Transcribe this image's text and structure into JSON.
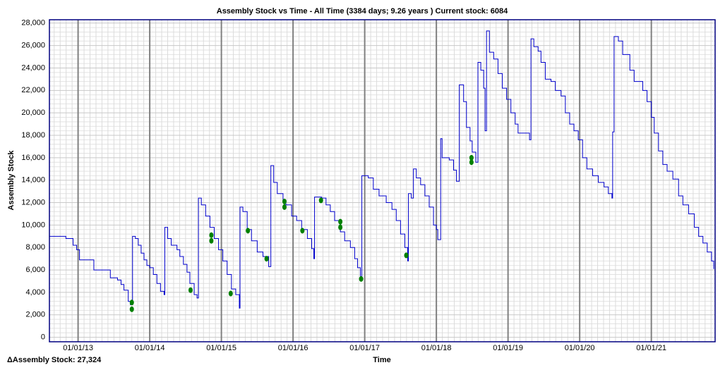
{
  "chart_data": {
    "type": "line",
    "title": "Assembly Stock vs Time - All Time (3384 days; 9.26 years ) Current stock: 6084",
    "x_label": "Time",
    "y_label": "Assembly Stock",
    "annotation": "ΔAssembly Stock: 27,324",
    "grid": true,
    "xlim": [
      2012.6,
      2021.89
    ],
    "ylim": [
      -400,
      28300
    ],
    "xticks": [
      {
        "value": 2013,
        "label": "01/01/13"
      },
      {
        "value": 2014,
        "label": "01/01/14"
      },
      {
        "value": 2015,
        "label": "01/01/15"
      },
      {
        "value": 2016,
        "label": "01/01/16"
      },
      {
        "value": 2017,
        "label": "01/01/17"
      },
      {
        "value": 2018,
        "label": "01/01/18"
      },
      {
        "value": 2019,
        "label": "01/01/19"
      },
      {
        "value": 2020,
        "label": "01/01/20"
      },
      {
        "value": 2021,
        "label": "01/01/21"
      }
    ],
    "yticks": [
      0,
      {
        "value": 2000,
        "label": "2,000"
      },
      {
        "value": 4000,
        "label": "4,000"
      },
      {
        "value": 6000,
        "label": "6,000"
      },
      {
        "value": 8000,
        "label": "8,000"
      },
      {
        "value": 10000,
        "label": "10,000"
      },
      {
        "value": 12000,
        "label": "12,000"
      },
      {
        "value": 14000,
        "label": "14,000"
      },
      {
        "value": 16000,
        "label": "16,000"
      },
      {
        "value": 18000,
        "label": "18,000"
      },
      {
        "value": 20000,
        "label": "20,000"
      },
      {
        "value": 22000,
        "label": "22,000"
      },
      {
        "value": 24000,
        "label": "24,000"
      },
      {
        "value": 26000,
        "label": "26,000"
      },
      {
        "value": 28000,
        "label": "28,000"
      }
    ],
    "series": [
      {
        "style": "step",
        "color": "#0000cc",
        "x": [
          2012.6,
          2012.83,
          2012.93,
          2012.98,
          2013.02,
          2013.2,
          2013.22,
          2013.42,
          2013.45,
          2013.55,
          2013.6,
          2013.64,
          2013.7,
          2013.73,
          2013.76,
          2013.8,
          2013.84,
          2013.88,
          2013.92,
          2013.96,
          2014.0,
          2014.05,
          2014.1,
          2014.15,
          2014.2,
          2014.21,
          2014.25,
          2014.3,
          2014.38,
          2014.42,
          2014.47,
          2014.52,
          2014.56,
          2014.62,
          2014.66,
          2014.68,
          2014.72,
          2014.78,
          2014.84,
          2014.9,
          2014.96,
          2015.02,
          2015.08,
          2015.14,
          2015.2,
          2015.25,
          2015.26,
          2015.3,
          2015.36,
          2015.42,
          2015.5,
          2015.58,
          2015.66,
          2015.69,
          2015.73,
          2015.78,
          2015.86,
          2015.9,
          2015.98,
          2016.05,
          2016.12,
          2016.2,
          2016.26,
          2016.29,
          2016.3,
          2016.4,
          2016.46,
          2016.52,
          2016.58,
          2016.66,
          2016.72,
          2016.8,
          2016.86,
          2016.9,
          2016.94,
          2016.96,
          2017.05,
          2017.12,
          2017.2,
          2017.3,
          2017.38,
          2017.44,
          2017.5,
          2017.56,
          2017.6,
          2017.61,
          2017.65,
          2017.68,
          2017.72,
          2017.78,
          2017.84,
          2017.9,
          2017.96,
          2018.0,
          2018.02,
          2018.06,
          2018.08,
          2018.18,
          2018.24,
          2018.28,
          2018.32,
          2018.38,
          2018.42,
          2018.47,
          2018.5,
          2018.55,
          2018.58,
          2018.62,
          2018.66,
          2018.68,
          2018.7,
          2018.74,
          2018.8,
          2018.86,
          2018.92,
          2018.98,
          2019.04,
          2019.1,
          2019.14,
          2019.3,
          2019.32,
          2019.36,
          2019.42,
          2019.46,
          2019.52,
          2019.6,
          2019.66,
          2019.74,
          2019.8,
          2019.86,
          2019.92,
          2019.98,
          2020.04,
          2020.1,
          2020.18,
          2020.26,
          2020.34,
          2020.4,
          2020.45,
          2020.46,
          2020.48,
          2020.54,
          2020.6,
          2020.7,
          2020.76,
          2020.88,
          2020.94,
          2021.0,
          2021.04,
          2021.1,
          2021.16,
          2021.22,
          2021.3,
          2021.38,
          2021.44,
          2021.52,
          2021.6,
          2021.66,
          2021.72,
          2021.78,
          2021.84,
          2021.87
        ],
        "values": [
          9000,
          8800,
          8200,
          7800,
          6900,
          6900,
          6000,
          6000,
          5300,
          5100,
          4700,
          4200,
          3200,
          2900,
          9000,
          8800,
          8200,
          7500,
          6900,
          6400,
          6200,
          5600,
          4800,
          4100,
          3800,
          9800,
          8800,
          8200,
          7800,
          7200,
          6500,
          5800,
          4800,
          3800,
          3500,
          12400,
          11800,
          10800,
          9800,
          8800,
          7800,
          6800,
          5600,
          4300,
          3800,
          2600,
          11600,
          11200,
          9600,
          8600,
          7600,
          7200,
          6300,
          15300,
          13800,
          12800,
          12200,
          11800,
          10800,
          10400,
          9600,
          8800,
          7900,
          7000,
          12500,
          12400,
          11800,
          11200,
          10400,
          9400,
          8600,
          8000,
          7000,
          6200,
          5100,
          14400,
          14200,
          13200,
          12600,
          12000,
          11400,
          10400,
          9200,
          8000,
          6800,
          12800,
          12400,
          15000,
          14200,
          13600,
          12600,
          11600,
          10000,
          9600,
          8700,
          17700,
          16000,
          15800,
          14900,
          13900,
          22500,
          21000,
          18700,
          17500,
          16500,
          15600,
          24500,
          23800,
          22200,
          18400,
          27300,
          25400,
          24800,
          23500,
          22200,
          21200,
          20000,
          19000,
          18200,
          17600,
          26600,
          25900,
          25500,
          24500,
          23000,
          22800,
          22000,
          21500,
          20000,
          19000,
          18400,
          17600,
          16000,
          15000,
          14400,
          13800,
          13400,
          12800,
          12400,
          18300,
          26800,
          26400,
          25200,
          23800,
          22800,
          22000,
          21000,
          19600,
          18200,
          16600,
          15400,
          14800,
          14100,
          12600,
          11800,
          11000,
          9800,
          9000,
          8400,
          7600,
          6800,
          6084
        ]
      },
      {
        "style": "dots",
        "color": "#008000",
        "x": [
          2013.75,
          2013.75,
          2014.57,
          2014.86,
          2014.86,
          2015.13,
          2015.37,
          2015.63,
          2015.88,
          2015.88,
          2016.13,
          2016.39,
          2016.66,
          2016.66,
          2016.95,
          2017.58,
          2018.49,
          2018.49
        ],
        "values": [
          2500,
          3100,
          4200,
          8600,
          9100,
          3900,
          9500,
          7000,
          11600,
          12100,
          9500,
          12200,
          9800,
          10300,
          5200,
          7300,
          15600,
          16000
        ]
      }
    ]
  }
}
